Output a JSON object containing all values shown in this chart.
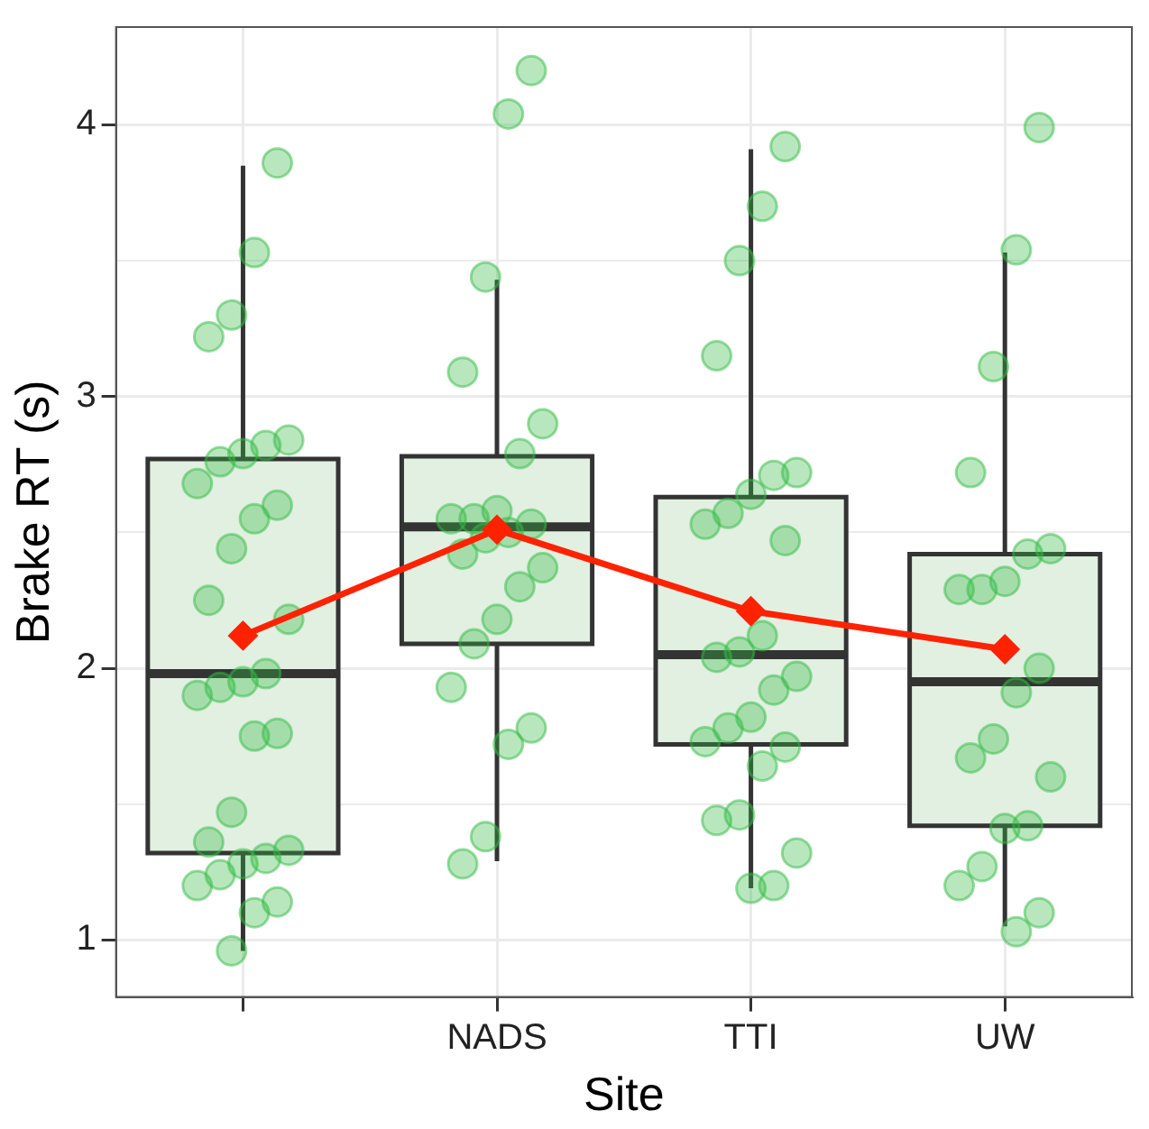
{
  "chart_data": {
    "type": "box",
    "xlabel": "Site",
    "ylabel": "Brake RT (s)",
    "categories": [
      null,
      "NADS",
      "TTI",
      "UW"
    ],
    "color": "#e1f0e1",
    "boxes": [
      {
        "low": 0.96,
        "q1": 1.32,
        "median": 1.98,
        "q3": 2.77,
        "high": 3.85
      },
      {
        "low": 1.29,
        "q1": 2.09,
        "median": 2.52,
        "q3": 2.78,
        "high": 3.43
      },
      {
        "low": 1.19,
        "q1": 1.72,
        "median": 2.05,
        "q3": 2.63,
        "high": 3.91
      },
      {
        "low": 1.05,
        "q1": 1.42,
        "median": 1.95,
        "q3": 2.42,
        "high": 3.53
      }
    ],
    "series": [
      {
        "type": "scatter",
        "color": "#33bb44",
        "x": [
          null,
          null,
          null,
          null,
          null,
          null,
          null,
          null,
          null,
          null,
          null,
          null,
          null,
          null,
          null,
          null,
          null,
          null,
          null,
          null,
          null,
          null,
          null,
          null,
          null,
          null,
          null,
          null,
          null,
          null,
          "NADS",
          "NADS",
          "NADS",
          "NADS",
          "NADS",
          "NADS",
          "NADS",
          "NADS",
          "NADS",
          "NADS",
          "NADS",
          "NADS",
          "NADS",
          "NADS",
          "NADS",
          "NADS",
          "NADS",
          "NADS",
          "NADS",
          "NADS",
          "NADS",
          "NADS",
          "TTI",
          "TTI",
          "TTI",
          "TTI",
          "TTI",
          "TTI",
          "TTI",
          "TTI",
          "TTI",
          "TTI",
          "TTI",
          "TTI",
          "TTI",
          "TTI",
          "TTI",
          "TTI",
          "TTI",
          "TTI",
          "TTI",
          "TTI",
          "TTI",
          "TTI",
          "TTI",
          "TTI",
          "TTI",
          "UW",
          "UW",
          "UW",
          "UW",
          "UW",
          "UW",
          "UW",
          "UW",
          "UW",
          "UW",
          "UW",
          "UW",
          "UW",
          "UW",
          "UW",
          "UW",
          "UW",
          "UW",
          "UW",
          "UW"
        ],
        "values": [
          3.86,
          3.53,
          3.3,
          3.22,
          2.84,
          2.82,
          2.79,
          2.76,
          2.68,
          2.6,
          2.55,
          2.44,
          2.25,
          2.18,
          1.98,
          1.95,
          1.93,
          1.9,
          1.76,
          1.75,
          1.47,
          1.36,
          1.33,
          1.3,
          1.28,
          1.24,
          1.2,
          1.14,
          1.1,
          0.96,
          4.2,
          4.04,
          3.44,
          3.09,
          2.9,
          2.79,
          2.58,
          2.55,
          2.55,
          2.53,
          2.5,
          2.48,
          2.42,
          2.37,
          2.3,
          2.18,
          2.09,
          1.93,
          1.78,
          1.72,
          1.38,
          1.28,
          3.92,
          3.7,
          3.5,
          3.15,
          2.72,
          2.71,
          2.64,
          2.57,
          2.53,
          2.47,
          2.12,
          2.06,
          2.04,
          1.97,
          1.92,
          1.82,
          1.78,
          1.73,
          1.71,
          1.64,
          1.46,
          1.44,
          1.32,
          1.2,
          1.19,
          3.99,
          3.54,
          3.11,
          2.72,
          2.44,
          2.42,
          2.32,
          2.29,
          2.29,
          2.0,
          1.91,
          1.74,
          1.67,
          1.6,
          1.42,
          1.41,
          1.27,
          1.2,
          1.1,
          1.03
        ]
      },
      {
        "type": "line",
        "color": "#ff2200",
        "marker": "diamond",
        "values": [
          2.12,
          2.51,
          2.21,
          2.07
        ]
      }
    ],
    "ylim": [
      0.79,
      4.36
    ],
    "yticks": [
      1,
      {
        "value": 1.5,
        "label": null
      },
      2,
      {
        "value": 2.5,
        "label": null
      },
      3,
      {
        "value": 3.5,
        "label": null
      },
      4
    ],
    "grid": true,
    "legend": false
  }
}
